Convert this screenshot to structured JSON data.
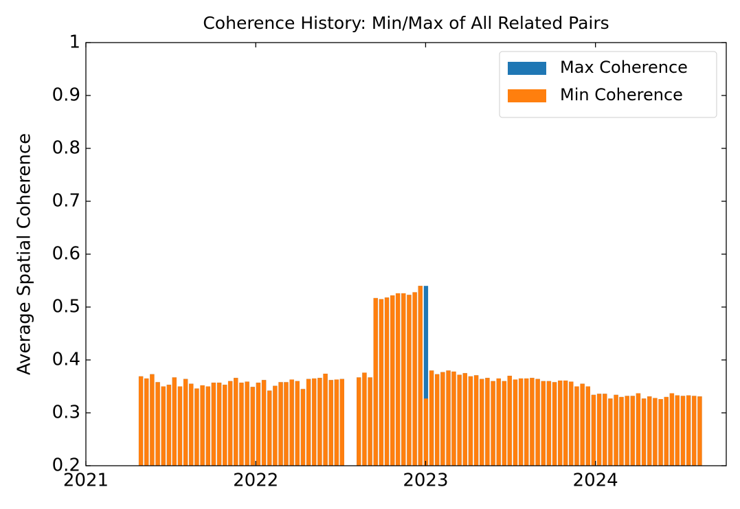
{
  "chart_data": {
    "type": "bar",
    "title": "Coherence History: Min/Max of All Related Pairs",
    "y_label": "Average Spatial Coherence",
    "x": [
      2021.324,
      2021.357,
      2021.39,
      2021.423,
      2021.456,
      2021.489,
      2021.521,
      2021.554,
      2021.587,
      2021.62,
      2021.653,
      2021.686,
      2021.719,
      2021.752,
      2021.785,
      2021.818,
      2021.85,
      2021.883,
      2021.916,
      2021.949,
      2021.982,
      2022.015,
      2022.048,
      2022.081,
      2022.114,
      2022.147,
      2022.179,
      2022.212,
      2022.245,
      2022.278,
      2022.311,
      2022.344,
      2022.377,
      2022.41,
      2022.443,
      2022.476,
      2022.508,
      2022.607,
      2022.64,
      2022.673,
      2022.706,
      2022.739,
      2022.772,
      2022.805,
      2022.837,
      2022.87,
      2022.903,
      2022.936,
      2022.969,
      2023.002,
      2023.035,
      2023.068,
      2023.101,
      2023.134,
      2023.166,
      2023.199,
      2023.232,
      2023.265,
      2023.298,
      2023.331,
      2023.364,
      2023.397,
      2023.43,
      2023.463,
      2023.495,
      2023.528,
      2023.561,
      2023.594,
      2023.627,
      2023.66,
      2023.693,
      2023.726,
      2023.759,
      2023.792,
      2023.824,
      2023.857,
      2023.89,
      2023.923,
      2023.956,
      2023.989,
      2024.022,
      2024.055,
      2024.088,
      2024.121,
      2024.153,
      2024.186,
      2024.219,
      2024.252,
      2024.285,
      2024.318,
      2024.351,
      2024.384,
      2024.417,
      2024.45,
      2024.482,
      2024.515,
      2024.548,
      2024.581,
      2024.614
    ],
    "series": [
      {
        "name": "Max Coherence",
        "color": "#1f77b4",
        "values": [
          0.369,
          0.365,
          0.373,
          0.358,
          0.35,
          0.353,
          0.367,
          0.35,
          0.364,
          0.355,
          0.346,
          0.352,
          0.35,
          0.357,
          0.357,
          0.353,
          0.36,
          0.366,
          0.357,
          0.359,
          0.349,
          0.357,
          0.362,
          0.342,
          0.351,
          0.358,
          0.358,
          0.363,
          0.36,
          0.345,
          0.364,
          0.365,
          0.366,
          0.374,
          0.362,
          0.363,
          0.364,
          0.367,
          0.376,
          0.367,
          0.517,
          0.515,
          0.518,
          0.522,
          0.526,
          0.526,
          0.523,
          0.528,
          0.54,
          0.54,
          0.38,
          0.373,
          0.377,
          0.38,
          0.378,
          0.372,
          0.375,
          0.369,
          0.371,
          0.364,
          0.366,
          0.36,
          0.365,
          0.36,
          0.37,
          0.363,
          0.365,
          0.365,
          0.366,
          0.364,
          0.36,
          0.36,
          0.358,
          0.361,
          0.361,
          0.359,
          0.35,
          0.355,
          0.35,
          0.334,
          0.336,
          0.336,
          0.327,
          0.334,
          0.33,
          0.332,
          0.332,
          0.337,
          0.327,
          0.331,
          0.328,
          0.326,
          0.33,
          0.337,
          0.333,
          0.332,
          0.333,
          0.332,
          0.331
        ]
      },
      {
        "name": "Min Coherence",
        "color": "#ff7f0e",
        "values": [
          0.369,
          0.365,
          0.373,
          0.358,
          0.35,
          0.353,
          0.367,
          0.35,
          0.364,
          0.355,
          0.346,
          0.352,
          0.35,
          0.357,
          0.357,
          0.353,
          0.36,
          0.366,
          0.357,
          0.359,
          0.349,
          0.357,
          0.362,
          0.342,
          0.351,
          0.358,
          0.358,
          0.363,
          0.36,
          0.345,
          0.364,
          0.365,
          0.366,
          0.374,
          0.362,
          0.363,
          0.364,
          0.367,
          0.376,
          0.367,
          0.517,
          0.515,
          0.518,
          0.522,
          0.526,
          0.526,
          0.523,
          0.528,
          0.54,
          0.327,
          0.38,
          0.373,
          0.377,
          0.38,
          0.378,
          0.372,
          0.375,
          0.369,
          0.371,
          0.364,
          0.366,
          0.36,
          0.365,
          0.36,
          0.37,
          0.363,
          0.365,
          0.365,
          0.366,
          0.364,
          0.36,
          0.36,
          0.358,
          0.361,
          0.361,
          0.359,
          0.35,
          0.355,
          0.35,
          0.334,
          0.336,
          0.336,
          0.327,
          0.334,
          0.33,
          0.332,
          0.332,
          0.337,
          0.327,
          0.331,
          0.328,
          0.326,
          0.33,
          0.337,
          0.333,
          0.332,
          0.333,
          0.332,
          0.331
        ]
      }
    ],
    "xlim": [
      2021,
      2024.77
    ],
    "xticks": [
      2021,
      2022,
      2023,
      2024
    ],
    "ylim": [
      0.2,
      1.0
    ],
    "yticks": [
      0.2,
      0.3,
      0.4,
      0.5,
      0.6,
      0.7,
      0.8,
      0.9,
      1.0
    ],
    "legend": "upper right"
  }
}
